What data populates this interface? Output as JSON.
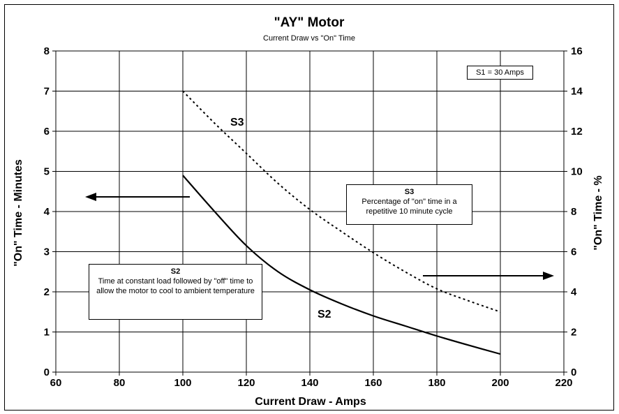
{
  "chart_data": {
    "type": "line",
    "title": "\"AY\" Motor",
    "subtitle": "Current Draw vs \"On\" Time",
    "xlabel": "Current Draw - Amps",
    "ylabel_left": "\"On\" Time - Minutes",
    "ylabel_right": "\"On\" Time - %",
    "xlim": [
      60,
      220
    ],
    "ylim_left": [
      0,
      8
    ],
    "ylim_right": [
      0,
      16
    ],
    "x_ticks": [
      60,
      80,
      100,
      120,
      140,
      160,
      180,
      200,
      220
    ],
    "y_ticks_left": [
      0,
      1,
      2,
      3,
      4,
      5,
      6,
      7,
      8
    ],
    "y_ticks_right": [
      0,
      2,
      4,
      6,
      8,
      10,
      12,
      14,
      16
    ],
    "grid": true,
    "series": [
      {
        "name": "S2",
        "axis": "left",
        "style": "solid",
        "x": [
          100,
          110,
          120,
          130,
          140,
          150,
          160,
          170,
          180,
          190,
          200
        ],
        "y": [
          4.9,
          4.0,
          3.15,
          2.5,
          2.05,
          1.7,
          1.4,
          1.15,
          0.9,
          0.67,
          0.45
        ]
      },
      {
        "name": "S3",
        "axis": "right",
        "style": "dotted",
        "x": [
          100,
          110,
          120,
          130,
          140,
          150,
          160,
          170,
          180,
          190,
          200
        ],
        "y": [
          14.0,
          12.4,
          10.9,
          9.4,
          8.1,
          7.0,
          5.95,
          5.0,
          4.15,
          3.55,
          3.0
        ]
      }
    ],
    "annotations": {
      "s1_box": "S1 = 30 Amps",
      "s3_label": "S3",
      "s2_label": "S2",
      "s3_note_title": "S3",
      "s3_note_text": "Percentage of \"on\" time in a repetitive 10 minute cycle",
      "s2_note_title": "S2",
      "s2_note_text": "Time at constant load followed by \"off\" time to allow the motor to cool to ambient temperature"
    }
  }
}
